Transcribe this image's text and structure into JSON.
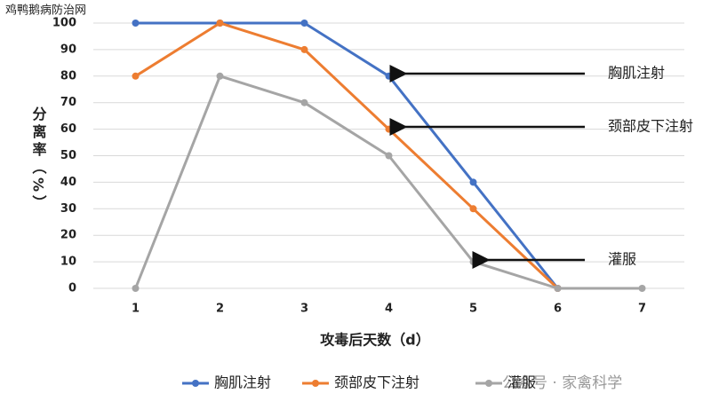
{
  "chart_data": {
    "type": "line",
    "watermark": "鸡鸭鹅病防治网",
    "source": "公众号 · 家禽科学",
    "xlabel": "攻毒后天数（d）",
    "ylabel": "分离率（%）",
    "categories": [
      "1",
      "2",
      "3",
      "4",
      "5",
      "6",
      "7"
    ],
    "series": [
      {
        "name": "胸肌注射",
        "color": "#4472c4",
        "values": [
          100,
          100,
          100,
          80,
          40,
          0,
          null
        ]
      },
      {
        "name": "颈部皮下注射",
        "color": "#ed7d31",
        "values": [
          80,
          100,
          90,
          60,
          30,
          0,
          null
        ]
      },
      {
        "name": "灌服",
        "color": "#a5a5a5",
        "values": [
          0,
          80,
          70,
          50,
          10,
          0,
          0
        ]
      }
    ],
    "annotations": [
      "胸肌注射",
      "颈部皮下注射",
      "灌服"
    ],
    "ylim": [
      0,
      100
    ],
    "yticks": [
      0,
      10,
      20,
      30,
      40,
      50,
      60,
      70,
      80,
      90,
      100
    ],
    "grid": true,
    "legend": "bottom"
  }
}
